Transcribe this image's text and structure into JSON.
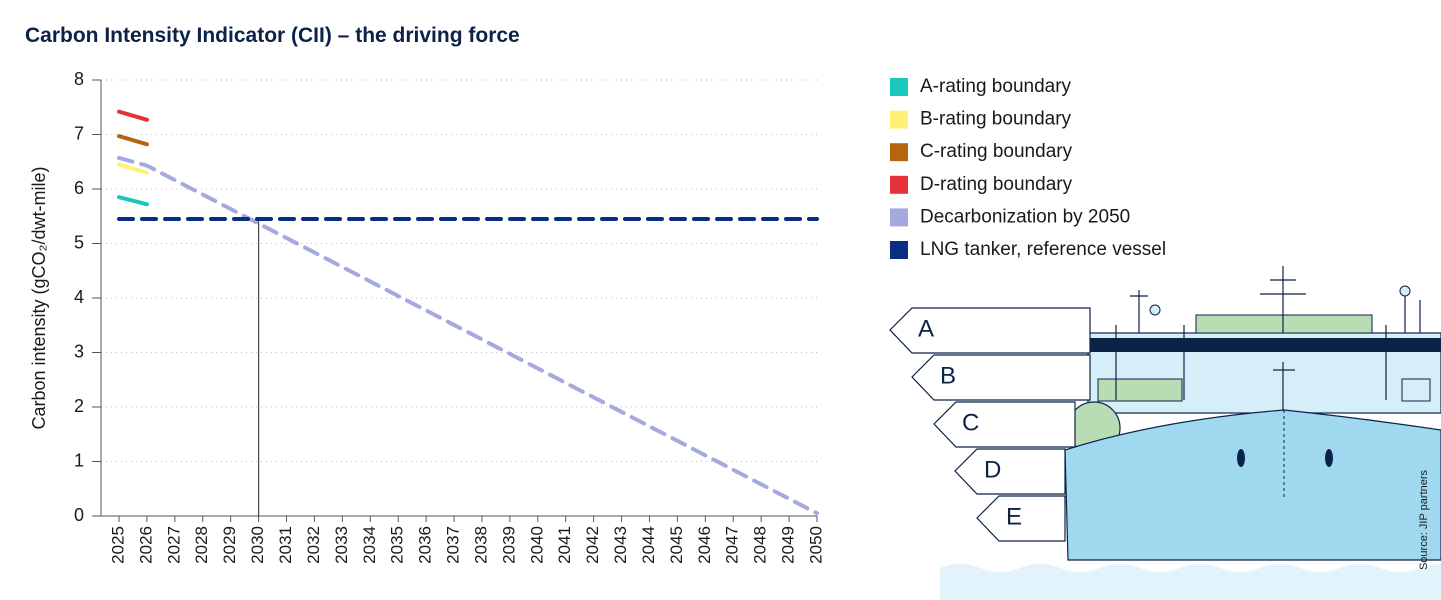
{
  "chart_data": {
    "type": "line",
    "title": "Carbon Intensity Indicator (CII) – the driving force",
    "y_label": "Carbon intensity (gCO₂/dwt-mile)",
    "xlim": [
      2025,
      2050
    ],
    "xticks": [
      2025,
      2026,
      2027,
      2028,
      2029,
      2030,
      2031,
      2032,
      2033,
      2034,
      2035,
      2036,
      2037,
      2038,
      2039,
      2040,
      2041,
      2042,
      2043,
      2044,
      2045,
      2046,
      2047,
      2048,
      2049,
      2050
    ],
    "ylim": [
      0,
      8
    ],
    "yticks": [
      0,
      1,
      2,
      3,
      4,
      5,
      6,
      7,
      8
    ],
    "grid": true,
    "series": [
      {
        "name": "A-rating boundary",
        "color": "#1bc6bd",
        "x": [
          2025,
          2026
        ],
        "values": [
          5.85,
          5.72
        ],
        "dashed": false
      },
      {
        "name": "B-rating boundary",
        "color": "#fff176",
        "x": [
          2025,
          2026
        ],
        "values": [
          6.45,
          6.3
        ],
        "dashed": false
      },
      {
        "name": "C-rating boundary",
        "color": "#b5650e",
        "x": [
          2025,
          2026
        ],
        "values": [
          6.97,
          6.82
        ],
        "dashed": false
      },
      {
        "name": "D-rating boundary",
        "color": "#e53238",
        "x": [
          2025,
          2026
        ],
        "values": [
          7.42,
          7.27
        ],
        "dashed": false
      },
      {
        "name": "Decarbonization by 2050",
        "color": "#a4a9e0",
        "x": [
          2025,
          2026,
          2050
        ],
        "values": [
          6.57,
          6.43,
          0.05
        ],
        "dashed": true
      },
      {
        "name": "LNG tanker, reference vessel",
        "color": "#0a2d84",
        "x": [
          2025,
          2050
        ],
        "values": [
          5.45,
          5.45
        ],
        "dashed": true
      }
    ],
    "vline": {
      "x": 2030,
      "ymax": 5.45
    },
    "illustration_labels": [
      "A",
      "B",
      "C",
      "D",
      "E"
    ],
    "source": "Source: JIP partners"
  }
}
